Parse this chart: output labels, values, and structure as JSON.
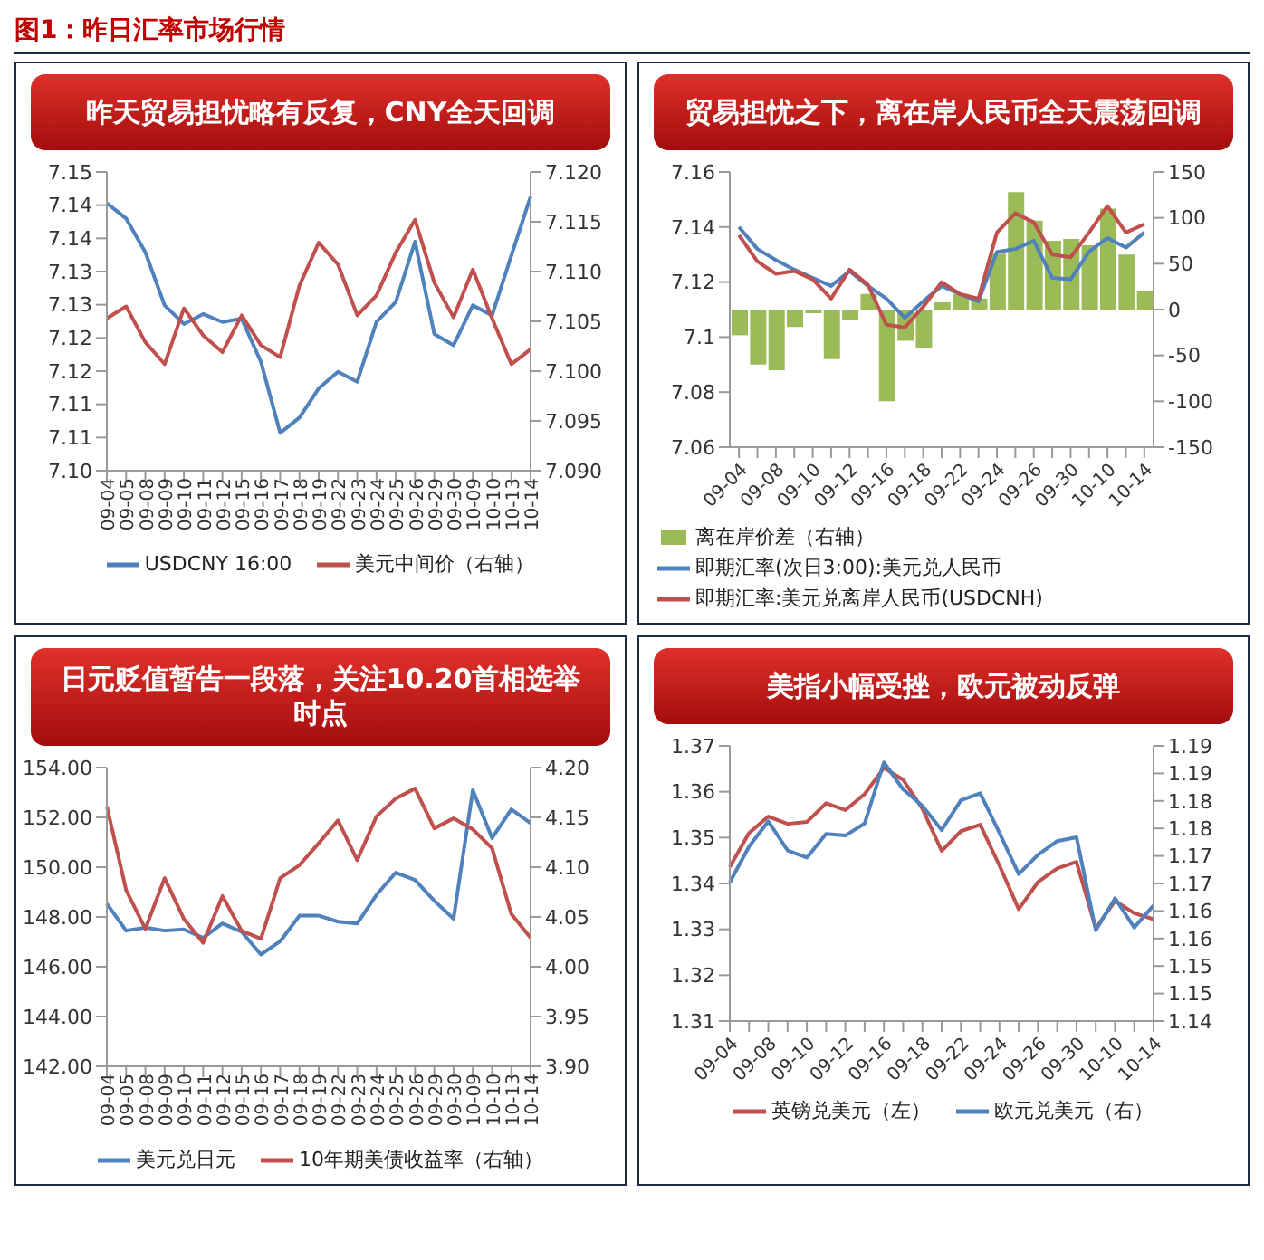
{
  "chart_data": [
    {
      "type": "line",
      "title": "昨天贸易担忧略有反复，CNY全天回调",
      "annotations": [
        "图1：昨日汇率市场行情"
      ],
      "legend": "bottom",
      "categories": [
        "09-04",
        "09-05",
        "09-08",
        "09-09",
        "09-10",
        "09-11",
        "09-12",
        "09-15",
        "09-16",
        "09-17",
        "09-18",
        "09-19",
        "09-22",
        "09-23",
        "09-24",
        "09-25",
        "09-26",
        "09-29",
        "09-30",
        "10-09",
        "10-10",
        "10-13",
        "10-14"
      ],
      "series": [
        {
          "name": "USDCNY 16:00",
          "color": "#4f81bd",
          "values": [
            7.1403,
            7.138,
            7.1329,
            7.1249,
            7.1221,
            7.1236,
            7.1224,
            7.1229,
            7.1164,
            7.1057,
            7.108,
            7.1124,
            7.1149,
            7.1134,
            7.1224,
            7.1254,
            7.1345,
            7.1206,
            7.1189,
            7.1249,
            7.1234,
            7.1324,
            7.1413
          ]
        },
        {
          "name": "美元中间价（右轴）",
          "color": "#c0504d",
          "axis": "y2",
          "values": [
            7.1053,
            7.1065,
            7.1029,
            7.1007,
            7.1063,
            7.1036,
            7.1019,
            7.1056,
            7.1026,
            7.1014,
            7.1086,
            7.1129,
            7.1107,
            7.1056,
            7.1076,
            7.1119,
            7.1152,
            7.1089,
            7.1054,
            7.1102,
            7.1053,
            7.1007,
            7.1022
          ]
        }
      ],
      "ylim": [
        7.1,
        7.145
      ],
      "yticks": [
        {
          "value": 7.1,
          "label": "7.10"
        },
        {
          "value": 7.105,
          "label": "7.11"
        },
        {
          "value": 7.11,
          "label": "7.11"
        },
        {
          "value": 7.115,
          "label": "7.12"
        },
        {
          "value": 7.12,
          "label": "7.12"
        },
        {
          "value": 7.125,
          "label": "7.13"
        },
        {
          "value": 7.13,
          "label": "7.13"
        },
        {
          "value": 7.135,
          "label": "7.14"
        },
        {
          "value": 7.14,
          "label": "7.14"
        },
        {
          "value": 7.145,
          "label": "7.15"
        }
      ],
      "y2lim": [
        7.09,
        7.12
      ],
      "y2ticks": [
        {
          "value": 7.09,
          "label": "7.090"
        },
        {
          "value": 7.095,
          "label": "7.095"
        },
        {
          "value": 7.1,
          "label": "7.100"
        },
        {
          "value": 7.105,
          "label": "7.105"
        },
        {
          "value": 7.11,
          "label": "7.110"
        },
        {
          "value": 7.115,
          "label": "7.115"
        },
        {
          "value": 7.12,
          "label": "7.120"
        }
      ]
    },
    {
      "type": "line",
      "title": "贸易担忧之下，离在岸人民币全天震荡回调",
      "legend": "bottom",
      "categories": [
        "09-04",
        null,
        "09-08",
        null,
        "09-10",
        null,
        "09-12",
        null,
        "09-16",
        null,
        "09-18",
        null,
        "09-22",
        null,
        "09-24",
        null,
        "09-26",
        null,
        "09-30",
        null,
        "10-10",
        null,
        "10-14"
      ],
      "series": [
        {
          "name": "离在岸价差（右轴）",
          "type": "bar",
          "color": "#9bbb59",
          "axis": "y2",
          "values": [
            -28,
            -60,
            -66,
            -19,
            -4,
            -54,
            -11,
            17,
            -100,
            -34,
            -42,
            8,
            17,
            12,
            61,
            128,
            97,
            75,
            77,
            70,
            110,
            60,
            20
          ]
        },
        {
          "name": "即期汇率(次日3:00):美元兑人民币",
          "color": "#4f81bd",
          "values": [
            7.14,
            7.132,
            7.128,
            7.1245,
            7.1215,
            7.1186,
            7.124,
            7.1186,
            7.114,
            7.107,
            7.113,
            7.1186,
            7.1156,
            7.113,
            7.131,
            7.132,
            7.135,
            7.1215,
            7.121,
            7.131,
            7.136,
            7.1325,
            7.138
          ]
        },
        {
          "name": "即期汇率:美元兑离岸人民币(USDCNH)",
          "color": "#c0504d",
          "values": [
            7.137,
            7.1275,
            7.123,
            7.124,
            7.121,
            7.114,
            7.1245,
            7.119,
            7.1045,
            7.1035,
            7.111,
            7.12,
            7.1156,
            7.114,
            7.138,
            7.145,
            7.1417,
            7.13,
            7.129,
            7.138,
            7.1476,
            7.138,
            7.141
          ]
        }
      ],
      "ylim": [
        7.06,
        7.16
      ],
      "yticks": [
        7.06,
        7.08,
        7.1,
        7.12,
        7.14,
        7.16
      ],
      "y2lim": [
        -150,
        150
      ],
      "y2ticks": [
        -150,
        -100,
        -50,
        0,
        50,
        100,
        150
      ]
    },
    {
      "type": "line",
      "title": "日元贬值暂告一段落，关注10.20首相选举时点",
      "legend": "bottom",
      "categories": [
        "09-04",
        "09-05",
        "09-08",
        "09-09",
        "09-10",
        "09-11",
        "09-12",
        "09-15",
        "09-16",
        "09-17",
        "09-18",
        "09-19",
        "09-22",
        "09-23",
        "09-24",
        "09-25",
        "09-26",
        "09-29",
        "09-30",
        "10-09",
        "10-10",
        "10-13",
        "10-14"
      ],
      "series": [
        {
          "name": "美元兑日元",
          "color": "#4f81bd",
          "values": [
            148.53,
            147.45,
            147.57,
            147.45,
            147.5,
            147.16,
            147.74,
            147.4,
            146.49,
            147.02,
            148.05,
            148.05,
            147.81,
            147.74,
            148.89,
            149.78,
            149.49,
            148.65,
            147.93,
            153.09,
            151.17,
            152.32,
            151.77
          ]
        },
        {
          "name": "10年期美债收益率（右轴）",
          "color": "#c0504d",
          "axis": "y2",
          "values": [
            4.161,
            4.077,
            4.038,
            4.089,
            4.048,
            4.024,
            4.071,
            4.036,
            4.028,
            4.089,
            4.102,
            4.124,
            4.147,
            4.107,
            4.151,
            4.169,
            4.179,
            4.139,
            4.149,
            4.138,
            4.119,
            4.053,
            4.029
          ]
        }
      ],
      "ylim": [
        142,
        154
      ],
      "yticks": [
        {
          "value": 142,
          "label": "142.00"
        },
        {
          "value": 144,
          "label": "144.00"
        },
        {
          "value": 146,
          "label": "146.00"
        },
        {
          "value": 148,
          "label": "148.00"
        },
        {
          "value": 150,
          "label": "150.00"
        },
        {
          "value": 152,
          "label": "152.00"
        },
        {
          "value": 154,
          "label": "154.00"
        }
      ],
      "y2lim": [
        3.9,
        4.2
      ],
      "y2ticks": [
        {
          "value": 3.9,
          "label": "3.90"
        },
        {
          "value": 3.95,
          "label": "3.95"
        },
        {
          "value": 4,
          "label": "4.00"
        },
        {
          "value": 4.05,
          "label": "4.05"
        },
        {
          "value": 4.1,
          "label": "4.10"
        },
        {
          "value": 4.15,
          "label": "4.15"
        },
        {
          "value": 4.2,
          "label": "4.20"
        }
      ]
    },
    {
      "type": "line",
      "title": "美指小幅受挫，欧元被动反弹",
      "legend": "bottom",
      "categories": [
        "09-04",
        null,
        "09-08",
        null,
        "09-10",
        null,
        "09-12",
        null,
        "09-16",
        null,
        "09-18",
        null,
        "09-22",
        null,
        "09-24",
        null,
        "09-26",
        null,
        "09-30",
        null,
        "10-10",
        null,
        "10-14"
      ],
      "series": [
        {
          "name": "英镑兑美元（左）",
          "color": "#c0504d",
          "values": [
            1.3436,
            1.351,
            1.3546,
            1.353,
            1.3534,
            1.3575,
            1.356,
            1.3595,
            1.3652,
            1.3626,
            1.3563,
            1.3471,
            1.3514,
            1.3528,
            1.3439,
            1.3344,
            1.3403,
            1.3433,
            1.3447,
            1.3302,
            1.3362,
            1.3335,
            1.3322
          ]
        },
        {
          "name": "欧元兑美元（右）",
          "color": "#4f81bd",
          "axis": "y2",
          "values": [
            1.1652,
            1.1717,
            1.1763,
            1.171,
            1.1697,
            1.174,
            1.1737,
            1.1759,
            1.187,
            1.1821,
            1.1791,
            1.1747,
            1.1801,
            1.1814,
            1.1742,
            1.1667,
            1.1702,
            1.1727,
            1.1734,
            1.1565,
            1.1623,
            1.157,
            1.161
          ]
        }
      ],
      "ylim": [
        1.31,
        1.37
      ],
      "yticks": [
        1.31,
        1.32,
        1.33,
        1.34,
        1.35,
        1.36,
        1.37
      ],
      "y2lim": [
        1.14,
        1.19
      ],
      "y2ticks": [
        {
          "value": 1.14,
          "label": "1.14"
        },
        {
          "value": 1.145,
          "label": "1.15"
        },
        {
          "value": 1.15,
          "label": "1.15"
        },
        {
          "value": 1.155,
          "label": "1.16"
        },
        {
          "value": 1.16,
          "label": "1.16"
        },
        {
          "value": 1.165,
          "label": "1.17"
        },
        {
          "value": 1.17,
          "label": "1.17"
        },
        {
          "value": 1.175,
          "label": "1.18"
        },
        {
          "value": 1.18,
          "label": "1.18"
        },
        {
          "value": 1.185,
          "label": "1.19"
        },
        {
          "value": 1.19,
          "label": "1.19"
        }
      ]
    }
  ]
}
